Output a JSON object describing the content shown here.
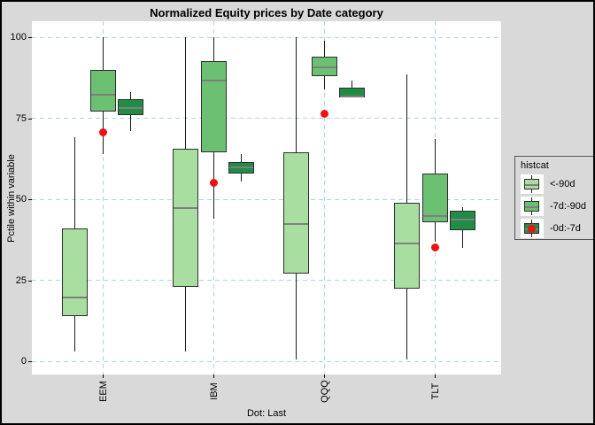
{
  "chart_data": {
    "type": "boxplot",
    "title": "Normalized Equity prices by Date category",
    "ylabel": "Pctile within variable",
    "caption": "Dot: Last",
    "legend_title": "histcat",
    "ylim": [
      0,
      100
    ],
    "yticks": [
      "0",
      "25",
      "50",
      "75",
      "100"
    ],
    "ytick_values": [
      0,
      25,
      50,
      75,
      100
    ],
    "categories": [
      "EEM",
      "IBM",
      "QQQ",
      "TLT"
    ],
    "grid": "dashed light-blue on white panel",
    "legend_position": "right",
    "series": [
      {
        "name": "<-90d",
        "color": "#a8dfa0",
        "boxes": [
          {
            "low": 3,
            "q1": 14,
            "median": 20,
            "q3": 41,
            "high": 69
          },
          {
            "low": 3,
            "q1": 23,
            "median": 47.5,
            "q3": 65.5,
            "high": 100
          },
          {
            "low": 0.5,
            "q1": 27,
            "median": 42.5,
            "q3": 64.5,
            "high": 100
          },
          {
            "low": 0.5,
            "q1": 22.5,
            "median": 36.5,
            "q3": 49,
            "high": 88.5
          }
        ]
      },
      {
        "name": "-7d:-90d",
        "color": "#6cc072",
        "boxes": [
          {
            "low": 64,
            "q1": 77,
            "median": 82.5,
            "q3": 90,
            "high": 100
          },
          {
            "low": 44,
            "q1": 64.5,
            "median": 87,
            "q3": 92.5,
            "high": 100
          },
          {
            "low": 84,
            "q1": 88,
            "median": 91,
            "q3": 94,
            "high": 99
          },
          {
            "low": 37,
            "q1": 43,
            "median": 45,
            "q3": 58,
            "high": 68.5
          }
        ]
      },
      {
        "name": "-0d:-7d",
        "color": "#218c46",
        "boxes": [
          {
            "low": 71,
            "q1": 76,
            "median": 78.5,
            "q3": 81,
            "high": 83
          },
          {
            "low": 55.5,
            "q1": 58,
            "median": 60,
            "q3": 61.5,
            "high": 64
          },
          {
            "low": 81.5,
            "q1": 81.5,
            "median": 82,
            "q3": 84.5,
            "high": 86.5
          },
          {
            "low": 35,
            "q1": 40.5,
            "median": 44,
            "q3": 46.5,
            "high": 47.5
          }
        ]
      }
    ],
    "dots": {
      "name": "Last",
      "color": "#ee1111",
      "values": [
        70.5,
        55,
        76.5,
        35
      ]
    }
  },
  "colors": {
    "background": "#d9d9d9",
    "panel": "#ffffff",
    "gridline": "#aad6e6",
    "box_border": "#2e2e2e",
    "median_line": "#7f7f7f",
    "whisker": "#1c1c1c",
    "light_green": "#a8dfa0",
    "medium_green": "#6cc072",
    "dark_green": "#218c46",
    "dot_red": "#ee1111"
  }
}
